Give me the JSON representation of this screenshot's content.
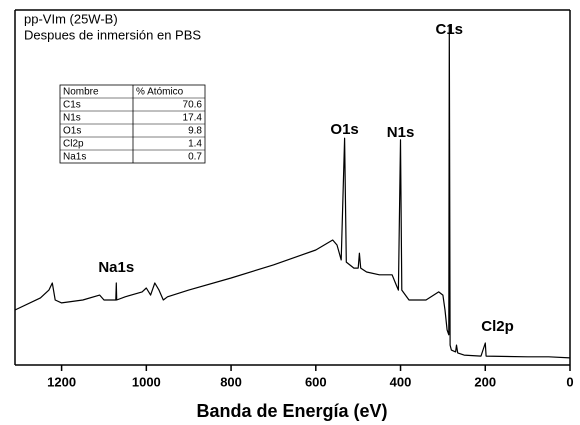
{
  "chart_data": {
    "type": "line",
    "title": [
      "pp-VIm (25W-B)",
      "Despues de inmersión en PBS"
    ],
    "xlabel": "Banda de Energía (eV)",
    "xlim": [
      1310,
      0
    ],
    "xticks": [
      1200,
      1000,
      800,
      600,
      400,
      200,
      0
    ],
    "ylim": [
      0,
      100
    ],
    "color": "#000000",
    "series": [
      {
        "x": [
          1310,
          1250,
          1230,
          1222,
          1215,
          1200,
          1150,
          1110,
          1100,
          1072,
          1071,
          1070,
          1050,
          1010,
          1000,
          990,
          980,
          970,
          960,
          950,
          900,
          800,
          700,
          600,
          560,
          550,
          540,
          532,
          528,
          510,
          500,
          497,
          494,
          480,
          450,
          420,
          410,
          405,
          400,
          397,
          380,
          340,
          310,
          300,
          295,
          290,
          286,
          285,
          283,
          280,
          270,
          268,
          265,
          250,
          210,
          200,
          198,
          100,
          50,
          0
        ],
        "values": [
          15.5,
          18.9,
          21.1,
          23.1,
          18.3,
          17.5,
          18.3,
          19.7,
          18.3,
          18.3,
          23.1,
          18.3,
          19.2,
          20.6,
          21.7,
          19.7,
          23.1,
          21.1,
          18.3,
          19.2,
          21.1,
          24.5,
          28.2,
          32.4,
          35.2,
          33.8,
          29.6,
          63.9,
          29.0,
          27.3,
          27.3,
          31.5,
          27.3,
          26.2,
          25.4,
          25.4,
          22.5,
          21.1,
          63.4,
          21.1,
          18.3,
          18.3,
          20.6,
          19.7,
          15.5,
          9.9,
          8.5,
          95.8,
          5.6,
          4.2,
          3.7,
          5.6,
          3.4,
          2.8,
          2.5,
          6.2,
          2.5,
          2.3,
          2.3,
          2.0
        ]
      }
    ],
    "annotations": [
      {
        "text": "C1s",
        "x": 285
      },
      {
        "text": "O1s",
        "x": 532
      },
      {
        "text": "N1s",
        "x": 400
      },
      {
        "text": "Na1s",
        "x": 1071
      },
      {
        "text": "Cl2p",
        "x": 200
      }
    ],
    "table": {
      "header": [
        "Nombre",
        "% Atómico"
      ],
      "rows": [
        [
          "C1s",
          70.6
        ],
        [
          "N1s",
          17.4
        ],
        [
          "O1s",
          9.8
        ],
        [
          "Cl2p",
          1.4
        ],
        [
          "Na1s",
          0.7
        ]
      ]
    }
  }
}
